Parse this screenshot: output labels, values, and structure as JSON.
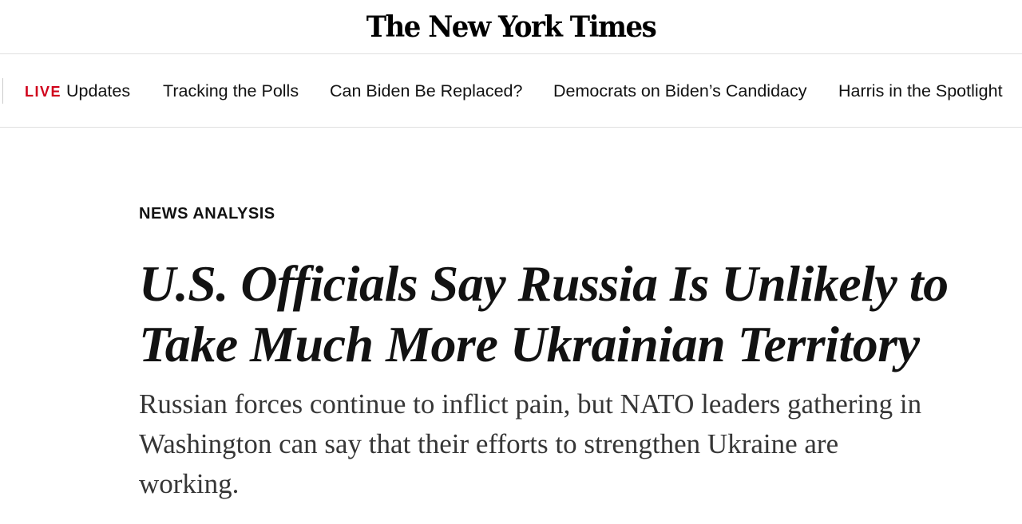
{
  "masthead": {
    "logo_text": "The New York Times"
  },
  "nav": {
    "items": [
      {
        "badge": "LIVE",
        "label": "Updates"
      },
      {
        "label": "Tracking the Polls"
      },
      {
        "label": "Can Biden Be Replaced?"
      },
      {
        "label": "Democrats on Biden’s Candidacy"
      },
      {
        "label": "Harris in the Spotlight"
      }
    ],
    "live_color": "#d0021b"
  },
  "article": {
    "kicker": "NEWS ANALYSIS",
    "headline": "U.S. Officials Say Russia Is Unlikely to Take Much More Ukrainian Territory",
    "summary": "Russian forces continue to inflict pain, but NATO leaders gathering in Washington can say that their efforts to strengthen Ukraine are working."
  }
}
